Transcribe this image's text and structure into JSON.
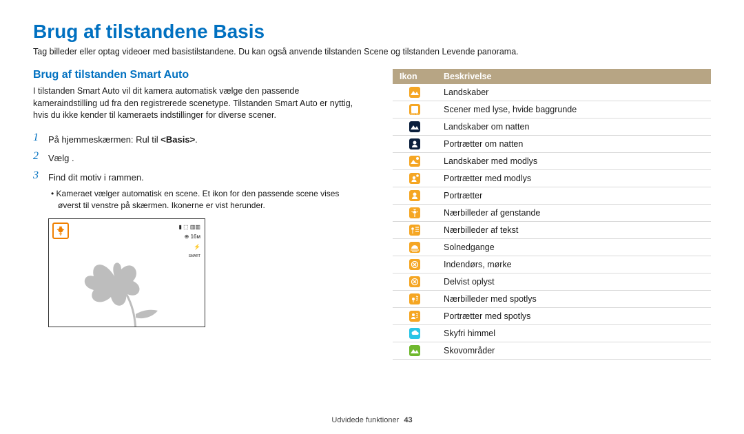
{
  "page_title": "Brug af tilstandene Basis",
  "page_subtitle": "Tag billeder eller optag videoer med basistilstandene. Du kan også anvende tilstanden Scene og tilstanden Levende panorama.",
  "section_title": "Brug af tilstanden Smart Auto",
  "section_desc": "I tilstanden Smart Auto vil dit kamera automatisk vælge den passende kameraindstilling ud fra den registrerede scenetype. Tilstanden Smart Auto er nyttig, hvis du ikke kender til kameraets indstillinger for diverse scener.",
  "steps": [
    {
      "num": "1",
      "text_pre": "På hjemmeskærmen: Rul til ",
      "bold": "<Basis>",
      "text_post": "."
    },
    {
      "num": "2",
      "text_pre": "Vælg        ."
    },
    {
      "num": "3",
      "text_pre": "Find dit motiv i rammen."
    }
  ],
  "step3_sub": "•  Kameraet vælger automatisk en scene. Et ikon for den passende scene vises øverst til venstre på skærmen. Ikonerne er vist herunder.",
  "screenshot": {
    "macro_icon_border": "#f08000",
    "macro_icon_fill": "#f08000",
    "status_lines": [
      "▮  ⬚  ▥▥",
      "⊕ 16ᴍ",
      "⚡",
      "SMART"
    ]
  },
  "table": {
    "header": {
      "icon": "Ikon",
      "desc": "Beskrivelse"
    },
    "header_bg": "#b7a584",
    "header_fg": "#ffffff",
    "row_border": "#d9d9d9",
    "rows": [
      {
        "icon_bg": "#f5a623",
        "icon_svg": "landscape",
        "desc": "Landskaber"
      },
      {
        "icon_bg": "#f5a623",
        "icon_svg": "white",
        "desc": "Scener med lyse, hvide baggrunde"
      },
      {
        "icon_bg": "#0a1e3c",
        "icon_svg": "landscape",
        "desc": "Landskaber om natten"
      },
      {
        "icon_bg": "#0a1e3c",
        "icon_svg": "portrait",
        "desc": "Portrætter om natten"
      },
      {
        "icon_bg": "#f5a623",
        "icon_svg": "landscape-sun",
        "desc": "Landskaber med modlys"
      },
      {
        "icon_bg": "#f5a623",
        "icon_svg": "portrait-sun",
        "desc": "Portrætter med modlys"
      },
      {
        "icon_bg": "#f5a623",
        "icon_svg": "portrait",
        "desc": "Portrætter"
      },
      {
        "icon_bg": "#f5a623",
        "icon_svg": "macro",
        "desc": "Nærbilleder af genstande"
      },
      {
        "icon_bg": "#f5a623",
        "icon_svg": "macro-text",
        "desc": "Nærbilleder af tekst"
      },
      {
        "icon_bg": "#f5a623",
        "icon_svg": "sunset",
        "desc": "Solnedgange"
      },
      {
        "icon_bg": "#f5a623",
        "icon_svg": "indoor",
        "desc": "Indendørs, mørke"
      },
      {
        "icon_bg": "#f5a623",
        "icon_svg": "indoor",
        "desc": "Delvist oplyst"
      },
      {
        "icon_bg": "#f5a623",
        "icon_svg": "macro-spot",
        "desc": "Nærbilleder med spotlys"
      },
      {
        "icon_bg": "#f5a623",
        "icon_svg": "portrait-spot",
        "desc": "Portrætter med spotlys"
      },
      {
        "icon_bg": "#29c5e6",
        "icon_svg": "sky",
        "desc": "Skyfri himmel"
      },
      {
        "icon_bg": "#6fb82e",
        "icon_svg": "landscape",
        "desc": "Skovområder"
      }
    ]
  },
  "footer": {
    "label": "Udvidede funktioner",
    "page": "43"
  }
}
